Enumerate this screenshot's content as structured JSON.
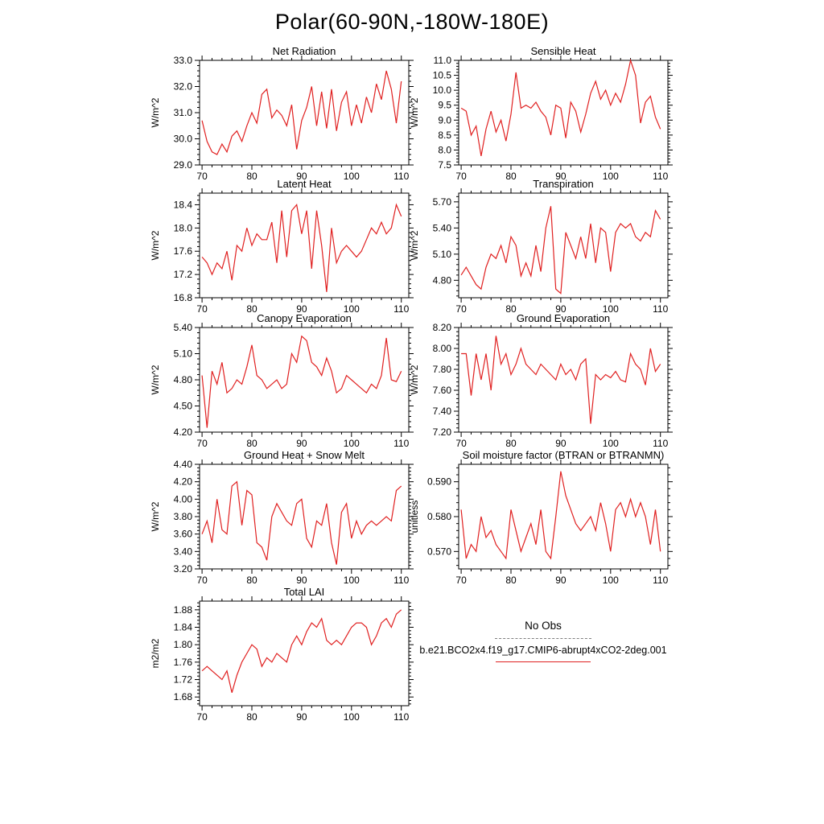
{
  "page": {
    "title": "Polar(60-90N,-180W-180E)"
  },
  "legend": {
    "no_obs_label": "No Obs",
    "model_label": "b.e21.BCO2x4.f19_g17.CMIP6-abrupt4xCO2-2deg.001"
  },
  "colors": {
    "series": "#e02020",
    "axis": "#000000",
    "dashed_line": "#808080"
  },
  "chart_data": {
    "type": "line",
    "suptitle": "Polar(60-90N,-180W-180E)",
    "legend_entries": [
      "No Obs",
      "b.e21.BCO2x4.f19_g17.CMIP6-abrupt4xCO2-2deg.001"
    ],
    "x": [
      70,
      71,
      72,
      73,
      74,
      75,
      76,
      77,
      78,
      79,
      80,
      81,
      82,
      83,
      84,
      85,
      86,
      87,
      88,
      89,
      90,
      91,
      92,
      93,
      94,
      95,
      96,
      97,
      98,
      99,
      100,
      101,
      102,
      103,
      104,
      105,
      106,
      107,
      108,
      109,
      110
    ],
    "xticks": [
      "70",
      "80",
      "90",
      "100",
      "110"
    ],
    "xlim": [
      69.5,
      111.5
    ],
    "panels": [
      {
        "title": "Net Radiation",
        "ylabel": "W/m^2",
        "ylim": [
          29.0,
          33.0
        ],
        "yticks": [
          "29.0",
          "30.0",
          "31.0",
          "32.0",
          "33.0"
        ],
        "values": [
          30.7,
          29.9,
          29.5,
          29.4,
          29.8,
          29.5,
          30.1,
          30.3,
          29.9,
          30.5,
          31.0,
          30.6,
          31.7,
          31.9,
          30.8,
          31.1,
          30.9,
          30.5,
          31.3,
          29.6,
          30.7,
          31.2,
          32.0,
          30.5,
          31.8,
          30.4,
          31.9,
          30.3,
          31.4,
          31.8,
          30.5,
          31.3,
          30.6,
          31.6,
          31.0,
          32.1,
          31.5,
          32.6,
          31.9,
          30.6,
          32.2
        ]
      },
      {
        "title": "Sensible Heat",
        "ylabel": "W/m^2",
        "ylim": [
          7.5,
          11.0
        ],
        "yticks": [
          "7.5",
          "8.0",
          "8.5",
          "9.0",
          "9.5",
          "10.0",
          "10.5",
          "11.0"
        ],
        "values": [
          9.4,
          9.3,
          8.5,
          8.8,
          7.8,
          8.7,
          9.3,
          8.6,
          9.0,
          8.3,
          9.2,
          10.6,
          9.4,
          9.5,
          9.4,
          9.6,
          9.3,
          9.1,
          8.5,
          9.5,
          9.4,
          8.4,
          9.6,
          9.3,
          8.6,
          9.2,
          9.9,
          10.3,
          9.7,
          10.0,
          9.5,
          9.9,
          9.6,
          10.2,
          11.0,
          10.5,
          8.9,
          9.6,
          9.8,
          9.1,
          8.7
        ]
      },
      {
        "title": "Latent Heat",
        "ylabel": "W/m^2",
        "ylim": [
          16.8,
          18.6
        ],
        "yticks": [
          "16.8",
          "17.2",
          "17.6",
          "18.0",
          "18.4"
        ],
        "values": [
          17.5,
          17.4,
          17.2,
          17.4,
          17.3,
          17.6,
          17.1,
          17.7,
          17.6,
          18.0,
          17.7,
          17.9,
          17.8,
          17.8,
          18.1,
          17.4,
          18.3,
          17.5,
          18.3,
          18.4,
          17.9,
          18.3,
          17.3,
          18.3,
          17.7,
          16.9,
          18.0,
          17.4,
          17.6,
          17.7,
          17.6,
          17.5,
          17.6,
          17.8,
          18.0,
          17.9,
          18.1,
          17.9,
          18.0,
          18.4,
          18.2
        ]
      },
      {
        "title": "Transpiration",
        "ylabel": "W/m^2",
        "ylim": [
          4.6,
          5.8
        ],
        "yticks": [
          "4.80",
          "5.10",
          "5.40",
          "5.70"
        ],
        "values": [
          4.86,
          4.95,
          4.85,
          4.75,
          4.7,
          4.95,
          5.1,
          5.05,
          5.2,
          5.0,
          5.3,
          5.2,
          4.85,
          5.0,
          4.85,
          5.2,
          4.9,
          5.4,
          5.65,
          4.7,
          4.65,
          5.35,
          5.2,
          5.05,
          5.3,
          5.05,
          5.45,
          5.0,
          5.4,
          5.35,
          4.9,
          5.35,
          5.45,
          5.4,
          5.45,
          5.3,
          5.25,
          5.35,
          5.3,
          5.6,
          5.5
        ]
      },
      {
        "title": "Canopy Evaporation",
        "ylabel": "W/m^2",
        "ylim": [
          4.2,
          5.4
        ],
        "yticks": [
          "4.20",
          "4.50",
          "4.80",
          "5.10",
          "5.40"
        ],
        "values": [
          4.85,
          4.25,
          4.9,
          4.75,
          5.0,
          4.65,
          4.7,
          4.8,
          4.75,
          4.95,
          5.2,
          4.85,
          4.8,
          4.7,
          4.75,
          4.8,
          4.7,
          4.75,
          5.1,
          5.0,
          5.3,
          5.25,
          5.0,
          4.95,
          4.85,
          5.05,
          4.9,
          4.65,
          4.7,
          4.85,
          4.8,
          4.75,
          4.7,
          4.65,
          4.75,
          4.7,
          4.85,
          5.28,
          4.8,
          4.78,
          4.9
        ]
      },
      {
        "title": "Ground Evaporation",
        "ylabel": "W/m^2",
        "ylim": [
          7.2,
          8.2
        ],
        "yticks": [
          "7.20",
          "7.40",
          "7.60",
          "7.80",
          "8.00",
          "8.20"
        ],
        "values": [
          7.95,
          7.95,
          7.55,
          7.95,
          7.7,
          7.95,
          7.6,
          8.12,
          7.85,
          7.95,
          7.75,
          7.85,
          8.0,
          7.85,
          7.8,
          7.75,
          7.85,
          7.8,
          7.75,
          7.7,
          7.85,
          7.75,
          7.8,
          7.7,
          7.85,
          7.9,
          7.28,
          7.75,
          7.7,
          7.75,
          7.72,
          7.78,
          7.7,
          7.68,
          7.95,
          7.85,
          7.8,
          7.65,
          8.0,
          7.78,
          7.85
        ]
      },
      {
        "title": "Ground Heat + Snow Melt",
        "ylabel": "W/m^2",
        "ylim": [
          3.2,
          4.4
        ],
        "yticks": [
          "3.20",
          "3.40",
          "3.60",
          "3.80",
          "4.00",
          "4.20",
          "4.40"
        ],
        "values": [
          3.6,
          3.75,
          3.5,
          4.0,
          3.65,
          3.6,
          4.15,
          4.2,
          3.7,
          4.1,
          4.05,
          3.5,
          3.45,
          3.3,
          3.8,
          3.95,
          3.85,
          3.75,
          3.7,
          3.95,
          4.0,
          3.55,
          3.45,
          3.75,
          3.7,
          3.95,
          3.5,
          3.25,
          3.85,
          3.95,
          3.55,
          3.75,
          3.6,
          3.7,
          3.75,
          3.7,
          3.75,
          3.8,
          3.75,
          4.1,
          4.15
        ]
      },
      {
        "title": "Soil moisture factor (BTRAN or BTRANMN)",
        "ylabel": "unitless",
        "ylim": [
          0.565,
          0.595
        ],
        "yticks": [
          "0.570",
          "0.580",
          "0.590"
        ],
        "values": [
          0.582,
          0.568,
          0.572,
          0.57,
          0.58,
          0.574,
          0.576,
          0.572,
          0.57,
          0.568,
          0.582,
          0.576,
          0.57,
          0.574,
          0.578,
          0.572,
          0.582,
          0.57,
          0.568,
          0.58,
          0.593,
          0.586,
          0.582,
          0.578,
          0.576,
          0.578,
          0.58,
          0.576,
          0.584,
          0.578,
          0.57,
          0.582,
          0.584,
          0.58,
          0.585,
          0.58,
          0.584,
          0.58,
          0.572,
          0.582,
          0.57
        ]
      },
      {
        "title": "Total LAI",
        "ylabel": "m2/m2",
        "ylim": [
          1.66,
          1.9
        ],
        "yticks": [
          "1.68",
          "1.72",
          "1.76",
          "1.80",
          "1.84",
          "1.88"
        ],
        "values": [
          1.74,
          1.75,
          1.74,
          1.73,
          1.72,
          1.74,
          1.69,
          1.73,
          1.76,
          1.78,
          1.8,
          1.79,
          1.75,
          1.77,
          1.76,
          1.78,
          1.77,
          1.76,
          1.8,
          1.82,
          1.8,
          1.83,
          1.85,
          1.84,
          1.86,
          1.81,
          1.8,
          1.81,
          1.8,
          1.82,
          1.84,
          1.85,
          1.85,
          1.84,
          1.8,
          1.82,
          1.85,
          1.86,
          1.84,
          1.87,
          1.88
        ]
      }
    ]
  }
}
